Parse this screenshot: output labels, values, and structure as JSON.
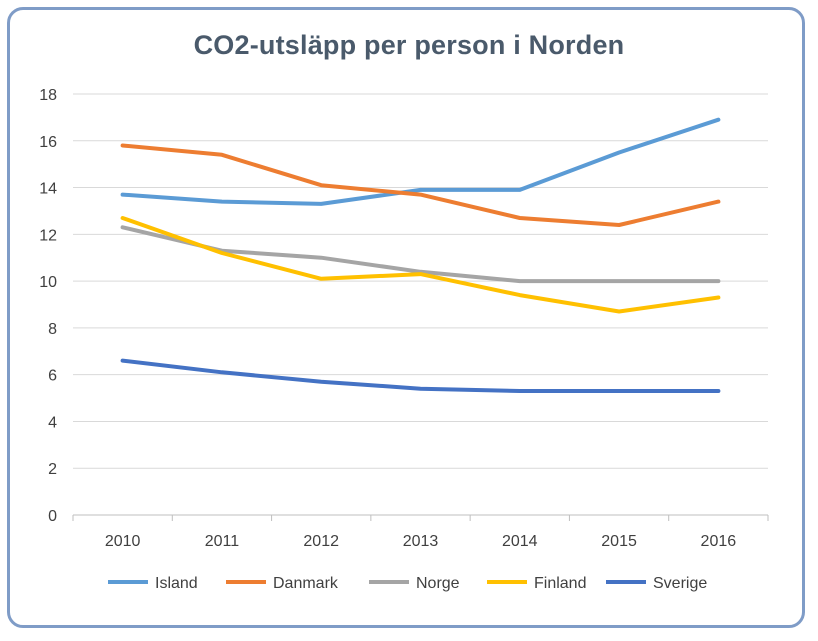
{
  "chart_data": {
    "type": "line",
    "title": "CO2-utsläpp per person i Norden",
    "xlabel": "",
    "ylabel": "",
    "categories": [
      "2010",
      "2011",
      "2012",
      "2013",
      "2014",
      "2015",
      "2016"
    ],
    "ylim": [
      0,
      18
    ],
    "yticks": [
      "0",
      "2",
      "4",
      "6",
      "8",
      "10",
      "12",
      "14",
      "16",
      "18"
    ],
    "grid": true,
    "legend": "bottom",
    "series": [
      {
        "name": "Island",
        "color": "#5b9bd5",
        "values": [
          13.7,
          13.4,
          13.3,
          13.9,
          13.9,
          15.5,
          16.9
        ]
      },
      {
        "name": "Danmark",
        "color": "#ed7d31",
        "values": [
          15.8,
          15.4,
          14.1,
          13.7,
          12.7,
          12.4,
          13.4
        ]
      },
      {
        "name": "Norge",
        "color": "#a5a5a5",
        "values": [
          12.3,
          11.3,
          11.0,
          10.4,
          10.0,
          10.0,
          10.0
        ]
      },
      {
        "name": "Finland",
        "color": "#ffc000",
        "values": [
          12.7,
          11.2,
          10.1,
          10.3,
          9.4,
          8.7,
          9.3
        ]
      },
      {
        "name": "Sverige",
        "color": "#4472c4",
        "values": [
          6.6,
          6.1,
          5.7,
          5.4,
          5.3,
          5.3,
          5.3
        ]
      }
    ]
  }
}
